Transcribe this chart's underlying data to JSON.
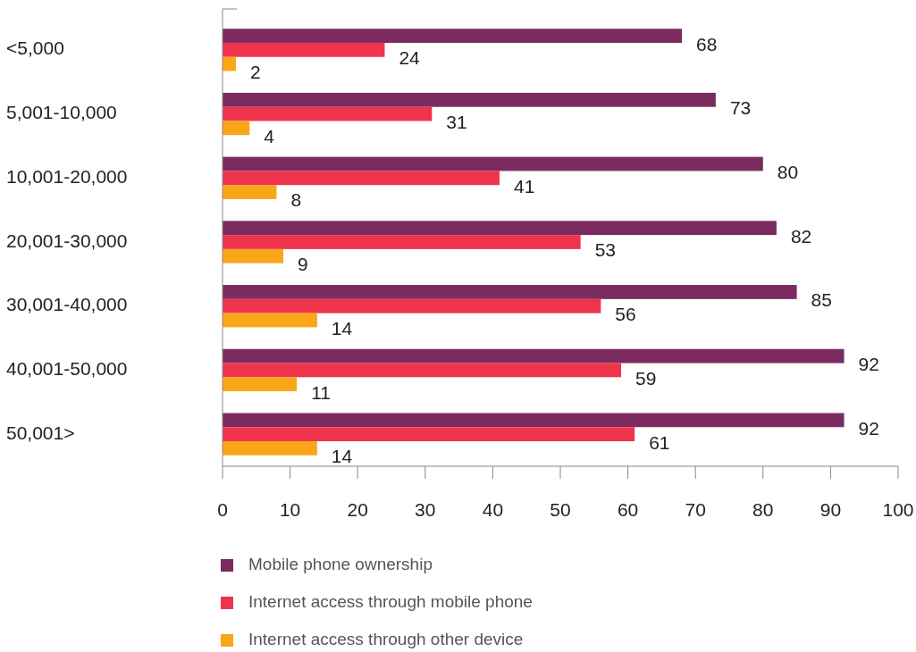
{
  "chart_data": {
    "type": "bar",
    "orientation": "horizontal",
    "categories": [
      "<5,000",
      "5,001-10,000",
      "10,001-20,000",
      "20,001-30,000",
      "30,001-40,000",
      "40,001-50,000",
      "50,001>"
    ],
    "series": [
      {
        "name": "Mobile phone ownership",
        "color": "#7b2b5f",
        "values": [
          68,
          73,
          80,
          82,
          85,
          92,
          92
        ]
      },
      {
        "name": "Internet access through mobile phone",
        "color": "#f0344b",
        "values": [
          24,
          31,
          41,
          53,
          56,
          59,
          61
        ]
      },
      {
        "name": "Internet access through other device",
        "color": "#f9a61b",
        "values": [
          2,
          4,
          8,
          9,
          14,
          11,
          14
        ]
      }
    ],
    "xlim": [
      0,
      100
    ],
    "xticks": [
      0,
      10,
      20,
      30,
      40,
      50,
      60,
      70,
      80,
      90,
      100
    ],
    "data_labels": true,
    "legend": "bottom",
    "grid": false
  }
}
